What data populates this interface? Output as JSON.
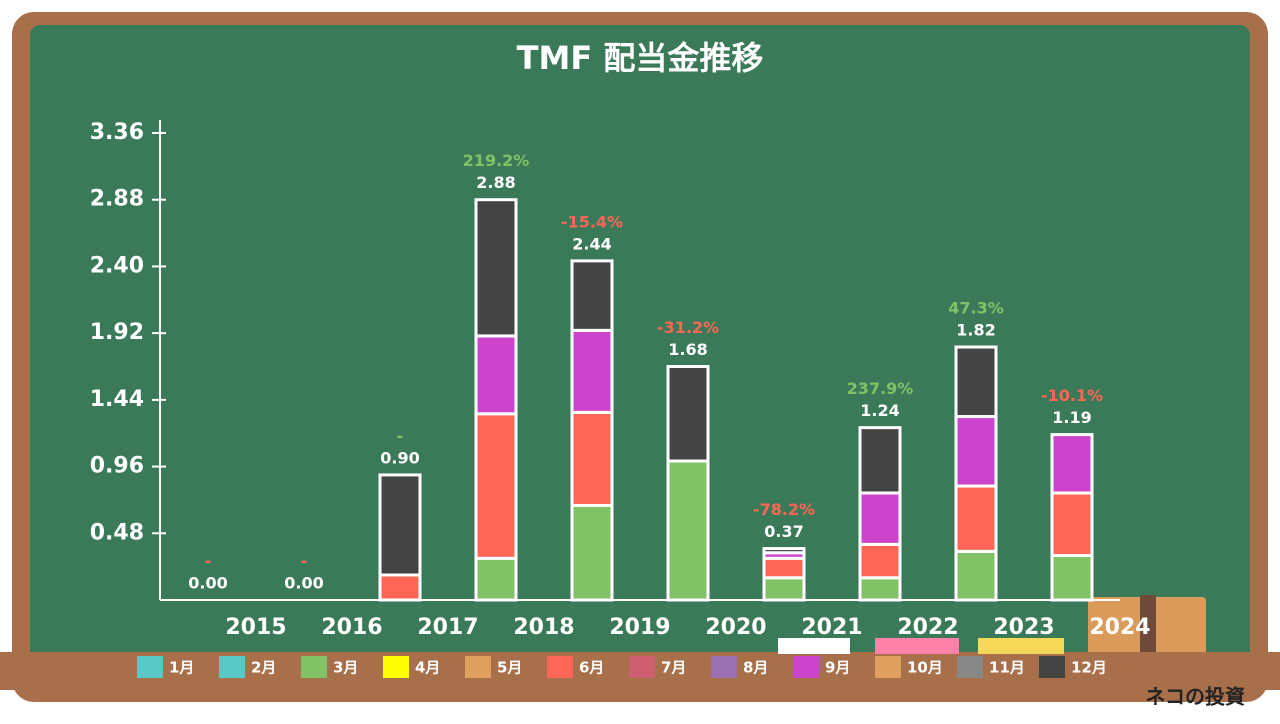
{
  "chart_data": {
    "type": "bar",
    "stacked": true,
    "title": "TMF 配当金推移",
    "categories": [
      "2015",
      "2016",
      "2017",
      "2018",
      "2019",
      "2020",
      "2021",
      "2022",
      "2023",
      "2024"
    ],
    "series": [
      {
        "name": "1月",
        "color": "#5bc8c8",
        "values": [
          0,
          0,
          0,
          0,
          0,
          0,
          0,
          0,
          0,
          0
        ]
      },
      {
        "name": "2月",
        "color": "#5bc8c8",
        "values": [
          0,
          0,
          0,
          0,
          0,
          0,
          0,
          0,
          0,
          0
        ]
      },
      {
        "name": "3月",
        "color": "#82c267",
        "values": [
          0,
          0,
          0,
          0.3,
          0.68,
          1.0,
          0.16,
          0.16,
          0.35,
          0.32
        ]
      },
      {
        "name": "4月",
        "color": "#ffff00",
        "values": [
          0,
          0,
          0,
          0,
          0,
          0,
          0,
          0,
          0,
          0
        ]
      },
      {
        "name": "5月",
        "color": "#e0a060",
        "values": [
          0,
          0,
          0,
          0,
          0,
          0,
          0,
          0,
          0,
          0
        ]
      },
      {
        "name": "6月",
        "color": "#ff6655",
        "values": [
          0,
          0,
          0.18,
          1.04,
          0.67,
          0,
          0.14,
          0.24,
          0.47,
          0.45
        ]
      },
      {
        "name": "7月",
        "color": "#cc6070",
        "values": [
          0,
          0,
          0,
          0,
          0,
          0,
          0,
          0,
          0,
          0
        ]
      },
      {
        "name": "8月",
        "color": "#9a70b0",
        "values": [
          0,
          0,
          0,
          0,
          0,
          0,
          0,
          0,
          0,
          0
        ]
      },
      {
        "name": "9月",
        "color": "#cc44cc",
        "values": [
          0,
          0,
          0,
          0.56,
          0.59,
          0,
          0.04,
          0.37,
          0.5,
          0.42
        ]
      },
      {
        "name": "10月",
        "color": "#e0a060",
        "values": [
          0,
          0,
          0,
          0,
          0,
          0,
          0,
          0,
          0,
          0
        ]
      },
      {
        "name": "11月",
        "color": "#888888",
        "values": [
          0,
          0,
          0,
          0,
          0,
          0,
          0,
          0,
          0,
          0
        ]
      },
      {
        "name": "12月",
        "color": "#444444",
        "values": [
          0,
          0,
          0.72,
          0.98,
          0.5,
          0.68,
          0.03,
          0.47,
          0.5,
          0
        ]
      }
    ],
    "totals": [
      0,
      0,
      0.9,
      2.88,
      2.44,
      1.68,
      0.37,
      1.24,
      1.82,
      1.19
    ],
    "total_labels": [
      "0.00",
      "0.00",
      "0.90",
      "2.88",
      "2.44",
      "1.68",
      "0.37",
      "1.24",
      "1.82",
      "1.19"
    ],
    "growth_labels": [
      "-",
      "-",
      "-",
      "219.2%",
      "-15.4%",
      "-31.2%",
      "-78.2%",
      "237.9%",
      "47.3%",
      "-10.1%"
    ],
    "growth_colors": [
      "#ff6655",
      "#ff6655",
      "#82c267",
      "#82c267",
      "#ff6655",
      "#ff6655",
      "#ff6655",
      "#82c267",
      "#82c267",
      "#ff6655"
    ],
    "ylim": [
      0,
      3.36
    ],
    "yticks": [
      0.48,
      0.96,
      1.44,
      1.92,
      {
        "value": 2.4,
        "label": "2.40"
      },
      2.88,
      3.36
    ],
    "watermark": "ネコの投資"
  }
}
